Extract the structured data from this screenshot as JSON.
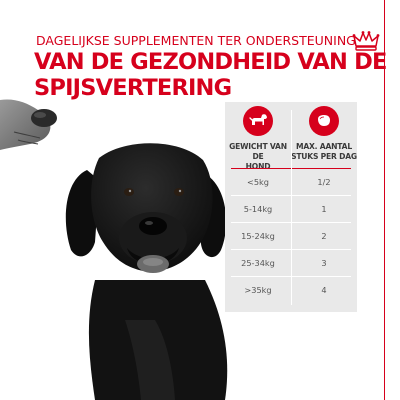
{
  "subtitle": "DAGELIJKSE SUPPLEMENTEN TER ONDERSTEUNING",
  "headline": {
    "line1": "VAN DE GEZONDHEID VAN DE",
    "line2": "SPIJSVERTERING"
  },
  "brand_color": "#d6001c",
  "table_background": "#e9e9e9",
  "logo_icon": "crown-icon",
  "table": {
    "weight_header": {
      "icon": "dog-icon",
      "line1": "GEWICHT VAN DE",
      "line2": "HOND"
    },
    "count_header": {
      "icon": "supplement-chew-icon",
      "line1": "MAX. AANTAL",
      "line2": "STUKS PER DAG"
    },
    "rows": [
      {
        "weight": "<5kg",
        "count": "1/2"
      },
      {
        "weight": "5-14kg",
        "count": "1"
      },
      {
        "weight": "15-24kg",
        "count": "2"
      },
      {
        "weight": "25-34kg",
        "count": "3"
      },
      {
        "weight": ">35kg",
        "count": "4"
      }
    ]
  }
}
